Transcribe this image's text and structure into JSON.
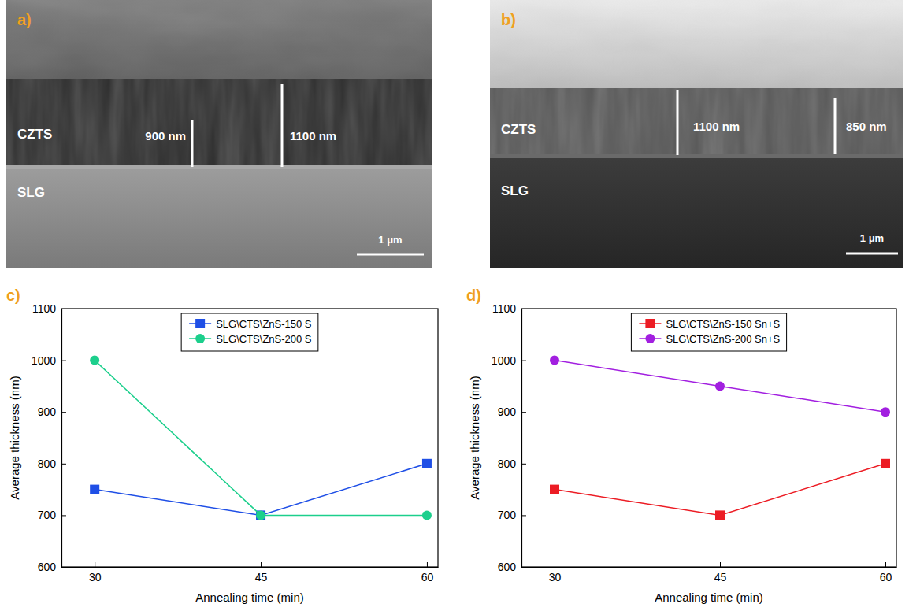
{
  "images": [
    {
      "panel_label": "a)",
      "layers": [
        "CZTS",
        "SLG"
      ],
      "measurements": [
        "900 nm",
        "1100 nm"
      ],
      "scale_bar": "1 μm"
    },
    {
      "panel_label": "b)",
      "layers": [
        "CZTS",
        "SLG"
      ],
      "measurements": [
        "1100 nm",
        "850 nm"
      ],
      "scale_bar": "1 μm"
    }
  ],
  "chart_data": [
    {
      "type": "line",
      "panel_label": "c)",
      "x_label": "Annealing time (min)",
      "y_label": "Average thickness (nm)",
      "x": [
        30,
        45,
        60
      ],
      "xlim": [
        27,
        61
      ],
      "xticks": [
        30,
        45,
        60
      ],
      "ylim": [
        600,
        1100
      ],
      "yticks": [
        600,
        700,
        800,
        900,
        1000,
        1100
      ],
      "legend": "upper center",
      "series": [
        {
          "name": "SLG\\CTS\\ZnS-150 S",
          "color": "#1f4fe6",
          "marker": "square",
          "line_style": "solid",
          "values": [
            750,
            700,
            800
          ]
        },
        {
          "name": "SLG\\CTS\\ZnS-200 S",
          "color": "#1ccf8c",
          "marker": "circle",
          "line_style": "solid",
          "values": [
            1000,
            700,
            700
          ]
        }
      ]
    },
    {
      "type": "line",
      "panel_label": "d)",
      "x_label": "Annealing time (min)",
      "y_label": "Average thickness (nm)",
      "x": [
        30,
        45,
        60
      ],
      "xlim": [
        27,
        61
      ],
      "xticks": [
        30,
        45,
        60
      ],
      "ylim": [
        600,
        1100
      ],
      "yticks": [
        600,
        700,
        800,
        900,
        1000,
        1100
      ],
      "legend": "upper center",
      "series": [
        {
          "name": "SLG\\CTS\\ZnS-150 Sn+S",
          "color": "#ec1c24",
          "marker": "square",
          "line_style": "solid",
          "values": [
            750,
            700,
            800
          ]
        },
        {
          "name": "SLG\\CTS\\ZnS-200 Sn+S",
          "color": "#a21fe0",
          "marker": "circle",
          "line_style": "solid",
          "values": [
            1000,
            950,
            900
          ]
        }
      ]
    }
  ]
}
